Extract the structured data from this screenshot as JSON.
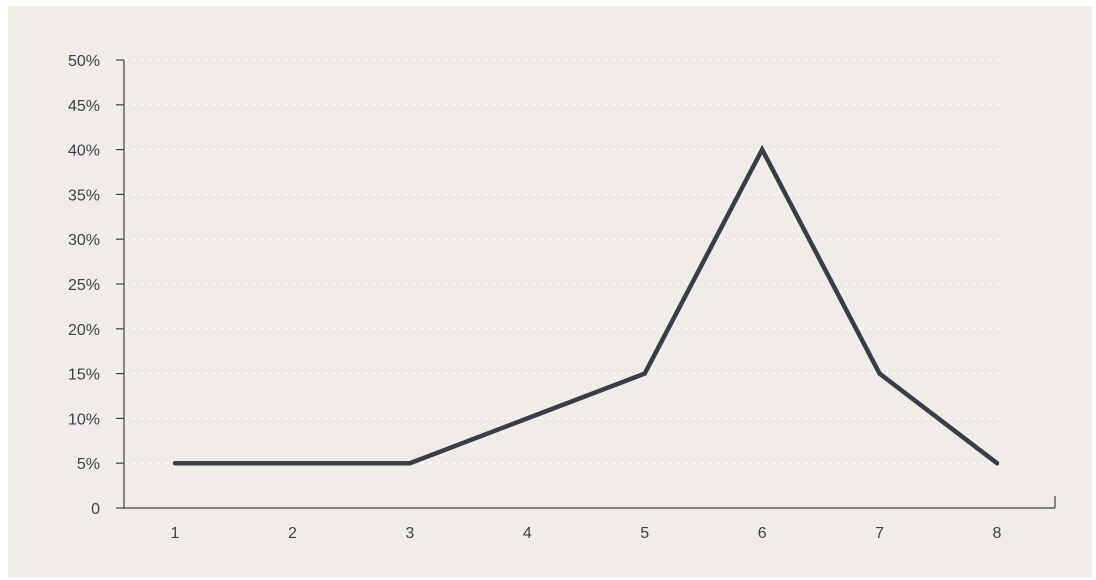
{
  "chart_data": {
    "type": "line",
    "title": "",
    "xlabel": "",
    "ylabel": "",
    "categories": [
      "1",
      "2",
      "3",
      "4",
      "5",
      "6",
      "7",
      "8"
    ],
    "x": [
      1,
      2,
      3,
      4,
      5,
      6,
      7,
      8
    ],
    "series": [
      {
        "values": [
          5,
          5,
          5,
          10,
          15,
          40,
          15,
          5
        ]
      }
    ],
    "ylim": [
      0,
      50
    ],
    "y_ticks": [
      0,
      5,
      10,
      15,
      20,
      25,
      30,
      35,
      40,
      45,
      50
    ],
    "y_tick_labels": [
      "0",
      "5%",
      "10%",
      "15%",
      "20%",
      "25%",
      "30%",
      "35%",
      "40%",
      "45%",
      "50%"
    ],
    "grid": "horizontal-dashed",
    "legend": "none",
    "colors": {
      "background": "#f0ede8",
      "line": "#383d47",
      "axis": "#3d4148",
      "grid": "#ffffff"
    }
  }
}
